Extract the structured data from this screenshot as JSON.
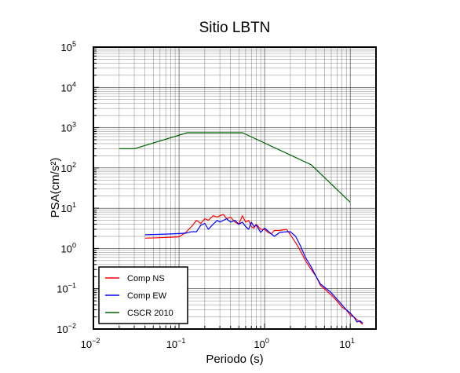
{
  "chart_data": {
    "type": "line",
    "title": "Sitio LBTN",
    "xlabel": "Periodo (s)",
    "ylabel": "PSA(cm/s²)",
    "xscale": "log",
    "yscale": "log",
    "xlim": [
      0.01,
      20
    ],
    "ylim": [
      0.01,
      100000
    ],
    "grid": true,
    "legend_position": "bottom-left",
    "x_ticks": [
      {
        "value": 0.01,
        "base": "10",
        "exp": "−2"
      },
      {
        "value": 0.1,
        "base": "10",
        "exp": "−1"
      },
      {
        "value": 1,
        "base": "10",
        "exp": "0"
      },
      {
        "value": 10,
        "base": "10",
        "exp": "1"
      }
    ],
    "y_ticks": [
      {
        "value": 0.01,
        "base": "10",
        "exp": "−2"
      },
      {
        "value": 0.1,
        "base": "10",
        "exp": "−1"
      },
      {
        "value": 1,
        "base": "10",
        "exp": "0"
      },
      {
        "value": 10,
        "base": "10",
        "exp": "1"
      },
      {
        "value": 100,
        "base": "10",
        "exp": "2"
      },
      {
        "value": 1000,
        "base": "10",
        "exp": "3"
      },
      {
        "value": 10000,
        "base": "10",
        "exp": "4"
      },
      {
        "value": 100000,
        "base": "10",
        "exp": "5"
      }
    ],
    "series": [
      {
        "name": "Comp NS",
        "color": "#ff0000",
        "x": [
          0.04,
          0.06,
          0.08,
          0.1,
          0.12,
          0.14,
          0.16,
          0.18,
          0.2,
          0.22,
          0.25,
          0.28,
          0.3,
          0.33,
          0.36,
          0.4,
          0.45,
          0.5,
          0.55,
          0.6,
          0.65,
          0.7,
          0.75,
          0.8,
          0.9,
          1.0,
          1.1,
          1.2,
          1.3,
          1.5,
          1.8,
          2.0,
          2.3,
          2.6,
          3.0,
          3.5,
          4.0,
          4.5,
          5.0,
          6.0,
          7.0,
          8.0,
          9.0,
          10.0,
          11.0,
          12.0,
          13.0,
          14.0
        ],
        "y": [
          1.8,
          1.85,
          1.9,
          1.95,
          2.5,
          3.5,
          5.0,
          4.2,
          5.5,
          5.0,
          6.5,
          6.0,
          6.5,
          7.0,
          5.5,
          6.0,
          4.5,
          4.0,
          6.5,
          4.5,
          5.0,
          3.5,
          3.2,
          4.0,
          3.0,
          3.0,
          2.5,
          2.3,
          2.8,
          2.8,
          3.0,
          2.2,
          1.4,
          0.9,
          0.5,
          0.3,
          0.2,
          0.12,
          0.1,
          0.07,
          0.05,
          0.035,
          0.03,
          0.022,
          0.02,
          0.017,
          0.015,
          0.013
        ]
      },
      {
        "name": "Comp EW",
        "color": "#0000ff",
        "x": [
          0.04,
          0.06,
          0.08,
          0.1,
          0.12,
          0.14,
          0.16,
          0.18,
          0.2,
          0.22,
          0.25,
          0.28,
          0.3,
          0.33,
          0.36,
          0.4,
          0.45,
          0.5,
          0.55,
          0.6,
          0.65,
          0.7,
          0.75,
          0.8,
          0.9,
          1.0,
          1.1,
          1.2,
          1.3,
          1.5,
          1.8,
          2.0,
          2.3,
          2.6,
          3.0,
          3.5,
          4.0,
          4.5,
          5.0,
          6.0,
          7.0,
          8.0,
          9.0,
          10.0,
          11.0,
          12.0,
          13.0,
          14.0
        ],
        "y": [
          2.2,
          2.25,
          2.3,
          2.35,
          2.4,
          2.6,
          2.6,
          3.8,
          4.2,
          3.0,
          4.0,
          5.0,
          4.5,
          5.0,
          5.5,
          4.5,
          5.0,
          4.0,
          4.5,
          3.5,
          3.0,
          4.5,
          3.5,
          3.8,
          2.5,
          3.2,
          2.7,
          2.3,
          2.0,
          2.5,
          2.6,
          2.6,
          2.0,
          1.2,
          0.6,
          0.35,
          0.2,
          0.13,
          0.11,
          0.08,
          0.055,
          0.04,
          0.03,
          0.025,
          0.02,
          0.015,
          0.016,
          0.014
        ]
      },
      {
        "name": "CSCR 2010",
        "color": "#006400",
        "x": [
          0.02,
          0.03,
          0.125,
          0.55,
          3.5,
          10.0
        ],
        "y": [
          300,
          300,
          750,
          750,
          120,
          14
        ]
      }
    ]
  }
}
